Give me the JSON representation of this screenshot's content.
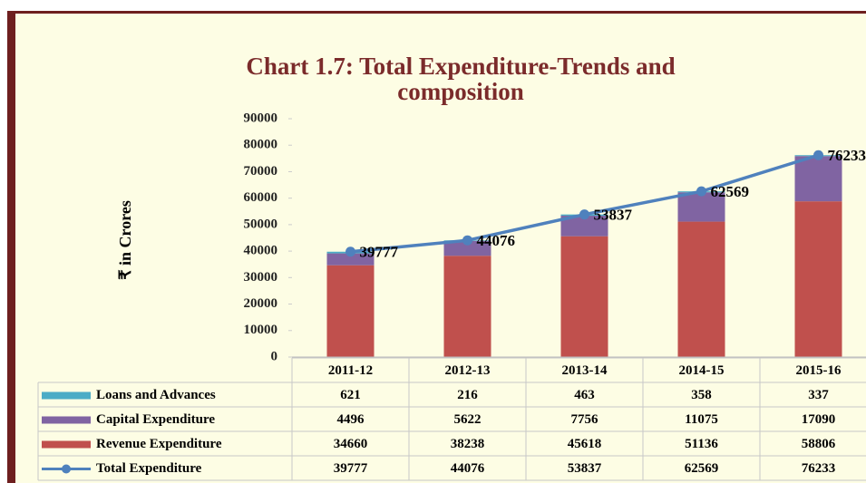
{
  "chart_data": {
    "type": "stacked-bar-line",
    "title": [
      "Chart 1.7: Total Expenditure-Trends and",
      "composition"
    ],
    "y_label": "₹ in Crores",
    "categories": [
      "2011-12",
      "2012-13",
      "2013-14",
      "2014-15",
      "2015-16"
    ],
    "ylim": [
      0,
      90000
    ],
    "yticks": [
      0,
      10000,
      20000,
      30000,
      40000,
      50000,
      60000,
      70000,
      80000,
      90000
    ],
    "series": [
      {
        "name": "Loans and Advances",
        "color": "#4bacc6",
        "values": [
          621,
          216,
          463,
          358,
          337
        ]
      },
      {
        "name": "Capital Expenditure",
        "color": "#8064a2",
        "values": [
          4496,
          5622,
          7756,
          11075,
          17090
        ]
      },
      {
        "name": "Revenue Expenditure",
        "color": "#c0504d",
        "values": [
          34660,
          38238,
          45618,
          51136,
          58806
        ]
      },
      {
        "name": "Total Expenditure",
        "color": "#4f81bd",
        "values": [
          39777,
          44076,
          53837,
          62569,
          76233
        ]
      }
    ]
  }
}
